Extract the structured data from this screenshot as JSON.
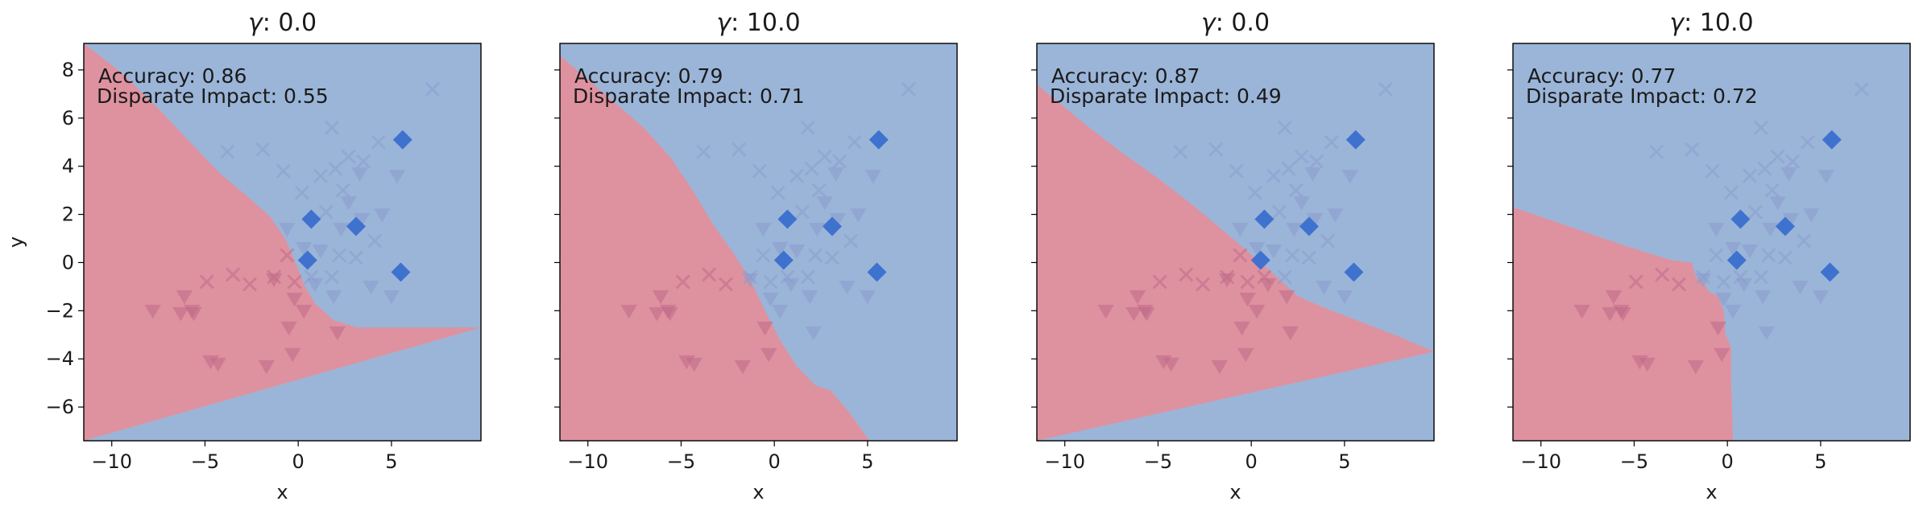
{
  "colors": {
    "positive_region": "#9bb5d8",
    "negative_region": "#de929f",
    "diamond": "#3a6fcf",
    "cross_pos": "#8a9dce",
    "cross_neg": "#c06a8a",
    "tri_pos": "#8a9dce",
    "tri_neg": "#c06a8a",
    "axis": "#000000"
  },
  "chart_data": {
    "type": "scatter",
    "subtype": "decision-boundary grid",
    "shared": {
      "xlim": [
        -11.5,
        9.8
      ],
      "ylim": [
        -7.4,
        9.1
      ],
      "xticks": [
        -10,
        -5,
        0,
        5
      ],
      "yticks": [
        -6,
        -4,
        -2,
        0,
        2,
        4,
        6,
        8
      ],
      "xlabel": "x",
      "ylabel": "y",
      "markers": [
        "cross",
        "triangle",
        "diamond"
      ],
      "crosses": [
        [
          -3.8,
          4.6
        ],
        [
          -1.9,
          4.7
        ],
        [
          -0.8,
          3.8
        ],
        [
          0.2,
          2.9
        ],
        [
          1.2,
          3.6
        ],
        [
          2.0,
          3.9
        ],
        [
          2.7,
          4.4
        ],
        [
          3.5,
          4.2
        ],
        [
          1.8,
          5.6
        ],
        [
          4.3,
          5.0
        ],
        [
          7.2,
          7.2
        ],
        [
          2.4,
          3.0
        ],
        [
          1.5,
          2.1
        ],
        [
          4.1,
          0.9
        ],
        [
          3.1,
          0.2
        ],
        [
          0.7,
          -0.6
        ],
        [
          -0.2,
          -0.8
        ],
        [
          -0.6,
          0.3
        ],
        [
          1.8,
          -0.6
        ],
        [
          2.2,
          0.3
        ],
        [
          -2.6,
          -0.9
        ],
        [
          -4.9,
          -0.8
        ],
        [
          -3.5,
          -0.5
        ],
        [
          -1.3,
          -0.6
        ]
      ],
      "triangles": [
        [
          -0.6,
          1.4
        ],
        [
          0.3,
          0.6
        ],
        [
          1.2,
          0.5
        ],
        [
          2.3,
          1.4
        ],
        [
          3.4,
          1.8
        ],
        [
          4.5,
          2.0
        ],
        [
          2.7,
          2.5
        ],
        [
          3.3,
          3.7
        ],
        [
          5.3,
          3.6
        ],
        [
          0.9,
          -0.9
        ],
        [
          1.9,
          -1.4
        ],
        [
          3.9,
          -1.0
        ],
        [
          5.0,
          -1.4
        ],
        [
          -0.2,
          -1.5
        ],
        [
          0.3,
          -2.0
        ],
        [
          -0.5,
          -2.7
        ],
        [
          2.1,
          -2.9
        ],
        [
          -0.3,
          -3.8
        ],
        [
          -1.7,
          -4.3
        ],
        [
          -4.3,
          -4.2
        ],
        [
          -4.7,
          -4.1
        ],
        [
          -5.6,
          -2.1
        ],
        [
          -6.3,
          -2.1
        ],
        [
          -5.7,
          -2.0
        ],
        [
          -6.1,
          -1.4
        ],
        [
          -7.8,
          -2.0
        ],
        [
          -1.3,
          -0.7
        ]
      ],
      "diamonds": [
        [
          0.7,
          1.8
        ],
        [
          3.1,
          1.5
        ],
        [
          5.6,
          5.1
        ],
        [
          0.5,
          0.1
        ],
        [
          5.5,
          -0.4
        ]
      ]
    },
    "panels": [
      {
        "gamma_label": "γ",
        "title_value": ": 0.0",
        "accuracy": "Accuracy: 0.86",
        "disparate_impact": "Disparate Impact: 0.55",
        "boundary": [
          [
            -11.5,
            9.1
          ],
          [
            -9.5,
            7.9
          ],
          [
            -7.5,
            6.4
          ],
          [
            -5.8,
            5.0
          ],
          [
            -4.2,
            3.7
          ],
          [
            -2.8,
            2.8
          ],
          [
            -1.5,
            1.9
          ],
          [
            -0.7,
            1.0
          ],
          [
            -0.2,
            0.1
          ],
          [
            0.3,
            -0.9
          ],
          [
            0.9,
            -1.7
          ],
          [
            1.9,
            -2.4
          ],
          [
            3.2,
            -2.7
          ],
          [
            5.5,
            -2.7
          ],
          [
            9.8,
            -2.7
          ]
        ]
      },
      {
        "gamma_label": "γ",
        "title_value": ": 10.0",
        "accuracy": "Accuracy: 0.79",
        "disparate_impact": "Disparate Impact: 0.71",
        "boundary": [
          [
            -11.5,
            8.6
          ],
          [
            -10.0,
            7.6
          ],
          [
            -8.5,
            6.6
          ],
          [
            -7.0,
            5.6
          ],
          [
            -5.5,
            4.3
          ],
          [
            -4.3,
            2.9
          ],
          [
            -3.3,
            1.6
          ],
          [
            -2.2,
            0.4
          ],
          [
            -1.3,
            -0.7
          ],
          [
            -0.5,
            -2.0
          ],
          [
            0.3,
            -3.2
          ],
          [
            1.2,
            -4.3
          ],
          [
            2.2,
            -5.1
          ],
          [
            3.0,
            -5.3
          ],
          [
            4.0,
            -6.2
          ],
          [
            5.1,
            -7.4
          ]
        ]
      },
      {
        "gamma_label": "γ",
        "title_value": ": 0.0",
        "accuracy": "Accuracy: 0.87",
        "disparate_impact": "Disparate Impact: 0.49",
        "boundary": [
          [
            -11.5,
            7.4
          ],
          [
            -9.0,
            5.8
          ],
          [
            -7.0,
            4.6
          ],
          [
            -5.0,
            3.5
          ],
          [
            -3.0,
            2.3
          ],
          [
            -1.0,
            1.0
          ],
          [
            0.8,
            -0.2
          ],
          [
            2.5,
            -1.4
          ],
          [
            4.0,
            -1.9
          ],
          [
            6.0,
            -2.5
          ],
          [
            8.0,
            -3.1
          ],
          [
            9.8,
            -3.7
          ]
        ]
      },
      {
        "gamma_label": "γ",
        "title_value": ": 10.0",
        "accuracy": "Accuracy: 0.77",
        "disparate_impact": "Disparate Impact: 0.72",
        "boundary": [
          [
            -11.5,
            2.3
          ],
          [
            -8.5,
            1.5
          ],
          [
            -5.5,
            0.7
          ],
          [
            -3.0,
            0.1
          ],
          [
            -1.9,
            0.0
          ],
          [
            -1.7,
            -0.6
          ],
          [
            -1.3,
            -0.8
          ],
          [
            -1.0,
            -1.2
          ],
          [
            -0.5,
            -1.4
          ],
          [
            -0.2,
            -2.0
          ],
          [
            -0.1,
            -3.0
          ],
          [
            0.2,
            -3.5
          ],
          [
            0.2,
            -5.0
          ],
          [
            0.3,
            -7.4
          ]
        ]
      }
    ]
  }
}
